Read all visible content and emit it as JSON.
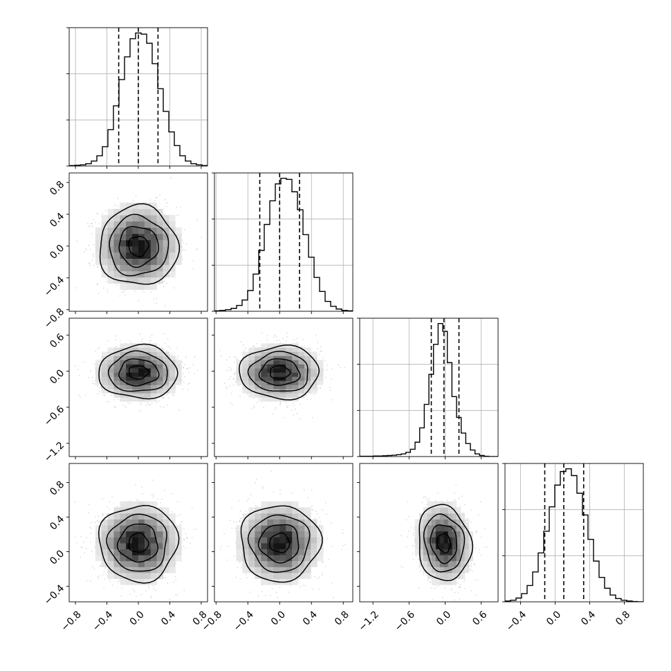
{
  "chart_data": {
    "type": "corner",
    "n_params": 4,
    "style": {
      "hist_color": "#000000",
      "contour_color": "#000000",
      "grid": true,
      "background": "#ffffff"
    },
    "params": [
      {
        "id": "p0",
        "range": [
          -0.88,
          0.88
        ],
        "mean": 0.0,
        "sd": 0.25,
        "quantiles": [
          -0.25,
          0.0,
          0.25
        ],
        "ticks": [
          -0.8,
          -0.4,
          0.0,
          0.4,
          0.8
        ],
        "tick_labels": [
          "−0.8",
          "−0.4",
          "0.0",
          "0.4",
          "0.8"
        ]
      },
      {
        "id": "p1",
        "range": [
          -0.82,
          0.92
        ],
        "mean": 0.0,
        "sd": 0.25,
        "quantiles": [
          -0.25,
          0.0,
          0.25
        ],
        "ticks": [
          -0.8,
          -0.4,
          0.0,
          0.4,
          0.8
        ],
        "tick_labels": [
          "−0.8",
          "−0.4",
          "0.0",
          "0.4",
          "0.8"
        ]
      },
      {
        "id": "p2",
        "range": [
          -1.42,
          0.88
        ],
        "mean": -0.02,
        "sd": 0.22,
        "quantiles": [
          -0.23,
          -0.02,
          0.23
        ],
        "ticks": [
          -1.2,
          -0.6,
          0.0,
          0.6
        ],
        "tick_labels": [
          "−1.2",
          "−0.6",
          "0.0",
          "0.6"
        ]
      },
      {
        "id": "p3",
        "range": [
          -0.58,
          1.02
        ],
        "mean": 0.1,
        "sd": 0.22,
        "quantiles": [
          -0.12,
          0.1,
          0.33
        ],
        "ticks": [
          -0.4,
          0.0,
          0.4,
          0.8
        ],
        "tick_labels": [
          "−0.4",
          "0.0",
          "0.4",
          "0.8"
        ]
      }
    ],
    "histograms": [
      {
        "param": "p0",
        "counts": [
          2,
          3,
          5,
          10,
          22,
          45,
          85,
          160,
          265,
          380,
          480,
          560,
          585,
          580,
          540,
          450,
          340,
          240,
          150,
          90,
          45,
          22,
          10,
          5,
          2
        ]
      },
      {
        "param": "p1",
        "counts": [
          2,
          4,
          7,
          13,
          26,
          50,
          92,
          165,
          270,
          385,
          490,
          565,
          590,
          585,
          530,
          450,
          340,
          240,
          150,
          88,
          44,
          22,
          10,
          4,
          2
        ]
      },
      {
        "param": "p2",
        "counts": [
          1,
          1,
          1,
          2,
          2,
          3,
          4,
          5,
          7,
          10,
          16,
          28,
          55,
          110,
          200,
          315,
          430,
          510,
          480,
          360,
          230,
          150,
          90,
          50,
          25,
          10,
          4,
          1,
          0,
          0
        ]
      },
      {
        "param": "p3",
        "counts": [
          3,
          6,
          14,
          30,
          60,
          110,
          180,
          260,
          350,
          430,
          480,
          490,
          465,
          400,
          320,
          230,
          150,
          90,
          50,
          25,
          12,
          6,
          3,
          1,
          0
        ]
      }
    ],
    "pairs": [
      {
        "x": "p0",
        "y": "p1",
        "rho": 0.0
      },
      {
        "x": "p0",
        "y": "p2",
        "rho": 0.0
      },
      {
        "x": "p1",
        "y": "p2",
        "rho": 0.0
      },
      {
        "x": "p0",
        "y": "p3",
        "rho": 0.0
      },
      {
        "x": "p1",
        "y": "p3",
        "rho": 0.0
      },
      {
        "x": "p2",
        "y": "p3",
        "rho": -0.1
      }
    ]
  }
}
